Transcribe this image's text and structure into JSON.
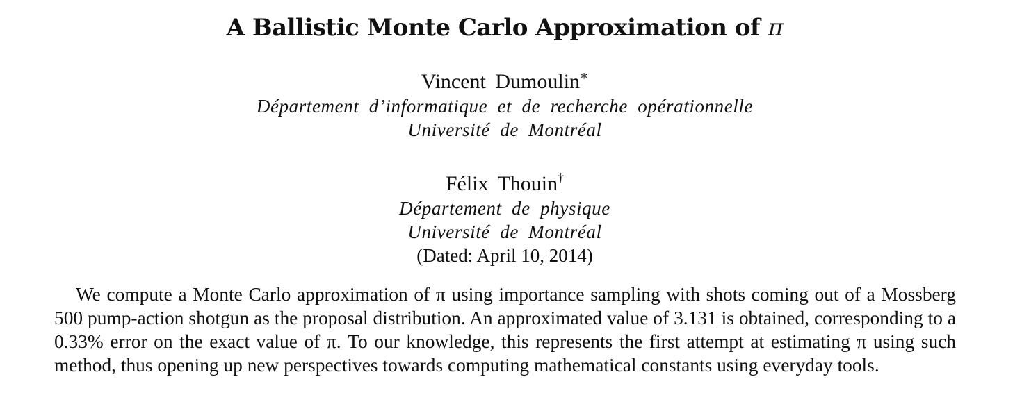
{
  "title": {
    "text": "A Ballistic Monte Carlo Approximation of",
    "symbol": "π"
  },
  "authors": [
    {
      "name": "Vincent Dumoulin",
      "mark": "∗",
      "affiliation": [
        "Département d’informatique et de recherche opérationnelle",
        "Université de Montréal"
      ]
    },
    {
      "name": "Félix Thouin",
      "mark": "†",
      "affiliation": [
        "Département de physique",
        "Université de Montréal"
      ]
    }
  ],
  "dated": "(Dated: April 10, 2014)",
  "abstract": "We compute a Monte Carlo approximation of π using importance sampling with shots coming out of a Mossberg 500 pump-action shotgun as the proposal distribution. An approximated value of 3.131 is obtained, corresponding to a 0.33% error on the exact value of π. To our knowledge, this represents the first attempt at estimating π using such method, thus opening up new perspectives towards computing mathematical constants using everyday tools."
}
